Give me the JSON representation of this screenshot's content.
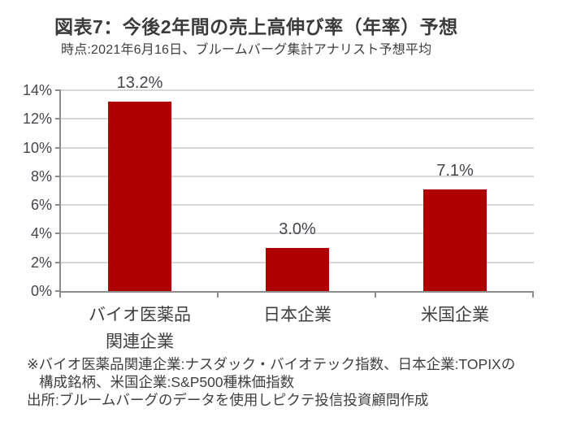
{
  "header": {
    "title": "図表7：今後2年間の売上高伸び率（年率）予想",
    "subtitle": "時点:2021年6月16日、ブルームバーグ集計アナリスト予想平均"
  },
  "chart_data": {
    "type": "bar",
    "title": "図表7：今後2年間の売上高伸び率（年率）予想",
    "subtitle": "時点:2021年6月16日、ブルームバーグ集計アナリスト予想平均",
    "categories": [
      "バイオ医薬品\n関連企業",
      "日本企業",
      "米国企業"
    ],
    "values": [
      13.2,
      3.0,
      7.1
    ],
    "value_labels": [
      "13.2%",
      "3.0%",
      "7.1%"
    ],
    "xlabel": "",
    "ylabel": "",
    "ylim": [
      0,
      14
    ],
    "yticks": [
      0,
      2,
      4,
      6,
      8,
      10,
      12,
      14
    ],
    "ytick_labels": [
      "0%",
      "2%",
      "4%",
      "6%",
      "8%",
      "10%",
      "12%",
      "14%"
    ],
    "grid": "horizontal gridlines on",
    "legend": "none",
    "bar_color": "#ae0000",
    "axis_color": "#8c8c8c",
    "gridline_color": "#d8d8d8"
  },
  "footnotes": {
    "line1": "※バイオ医薬品関連企業:ナスダック・バイオテック指数、日本企業:TOPIXの",
    "line2": "構成銘柄、米国企業:S&P500種株価指数",
    "line3": "出所:ブルームバーグのデータを使用しピクテ投信投資顧問作成"
  }
}
